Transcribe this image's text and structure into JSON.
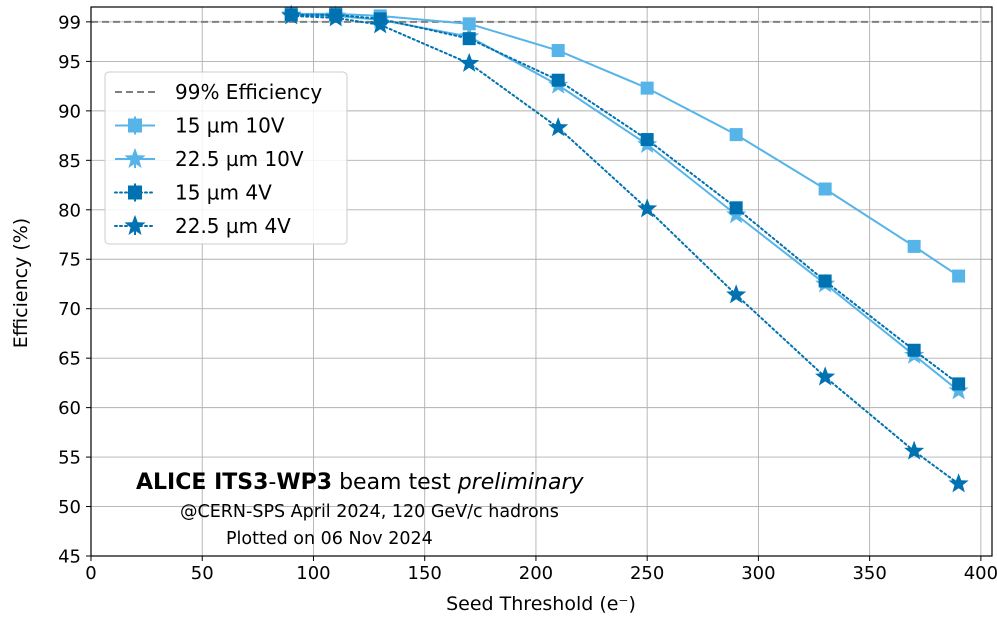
{
  "chart_data": {
    "type": "line",
    "xlabel": "Seed Threshold (e⁻)",
    "ylabel": "Efficiency (%)",
    "xlim": [
      0,
      405
    ],
    "ylim": [
      45,
      100.5
    ],
    "xticks": [
      0,
      50,
      100,
      150,
      200,
      250,
      300,
      350,
      400
    ],
    "yticks": [
      45,
      50,
      55,
      60,
      65,
      70,
      75,
      80,
      85,
      90,
      95,
      99
    ],
    "grid": true,
    "legend_position": "upper-left",
    "reference_line": {
      "name": "99% Efficiency",
      "y": 99,
      "style": "dashed",
      "color": "#808080"
    },
    "x": [
      90,
      110,
      130,
      170,
      210,
      250,
      290,
      330,
      370,
      390
    ],
    "series": [
      {
        "name": "15 µm 10V",
        "color": "#56b4e9",
        "line_style": "solid",
        "marker": "square",
        "values": [
          99.8,
          99.8,
          99.6,
          98.8,
          96.1,
          92.3,
          87.6,
          82.1,
          76.3,
          73.3
        ]
      },
      {
        "name": "22.5 µm 10V",
        "color": "#56b4e9",
        "line_style": "solid",
        "marker": "star",
        "values": [
          99.7,
          99.6,
          99.2,
          97.5,
          92.6,
          86.6,
          79.5,
          72.5,
          65.3,
          61.7
        ]
      },
      {
        "name": "15 µm 4V",
        "color": "#0072b2",
        "line_style": "dotted",
        "marker": "square",
        "values": [
          99.7,
          99.7,
          99.3,
          97.3,
          93.1,
          87.1,
          80.2,
          72.8,
          65.8,
          62.4
        ]
      },
      {
        "name": "22.5 µm 4V",
        "color": "#0072b2",
        "line_style": "dotted",
        "marker": "star",
        "values": [
          99.6,
          99.4,
          98.7,
          94.8,
          88.3,
          80.1,
          71.4,
          63.1,
          55.6,
          52.3
        ]
      }
    ],
    "annotations": {
      "title_bold_1": "ALICE ITS3",
      "title_sep": "-",
      "title_bold_2": "WP3",
      "title_normal": " beam test ",
      "title_italic": "preliminary",
      "line2": "@CERN-SPS April 2024, 120 GeV/c hadrons",
      "line3": "Plotted on 06 Nov 2024"
    }
  }
}
